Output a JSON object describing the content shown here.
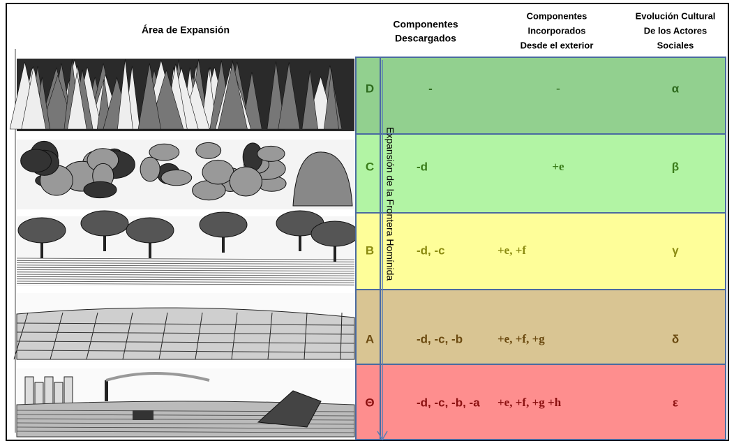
{
  "header": {
    "area": "Área de Expansión",
    "discharged": [
      "Componentes",
      "Descargados"
    ],
    "incorporated": [
      "Componentes",
      "Incorporados",
      "Desde el exterior"
    ],
    "evolution": [
      "Evolución Cultural",
      "De los Actores",
      "Sociales"
    ]
  },
  "arrow_label": "Expansión de la Frontera Homínida",
  "rows": [
    {
      "letter": "D",
      "discharged": "-",
      "incorporated": "-",
      "evolution": "α"
    },
    {
      "letter": "C",
      "discharged": "-d",
      "incorporated": "+e",
      "evolution": "β"
    },
    {
      "letter": "B",
      "discharged": "-d, -c",
      "incorporated": "+e, +f",
      "evolution": "γ"
    },
    {
      "letter": "A",
      "discharged": "-d, -c, -b",
      "incorporated": "+e, +f, +g",
      "evolution": "δ"
    },
    {
      "letter": "Θ",
      "discharged": "-d, -c, -b, -a",
      "incorporated": "+e, +f, +g +h",
      "evolution": "ε"
    }
  ]
}
